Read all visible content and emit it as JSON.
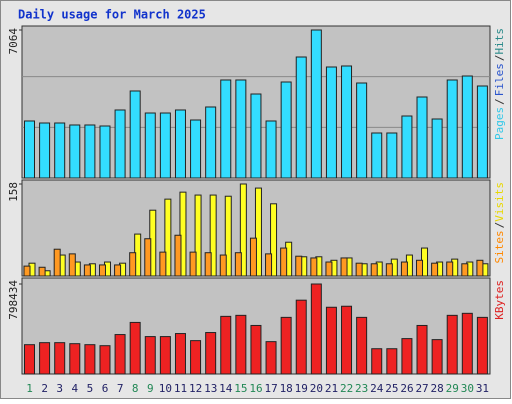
{
  "title": "Daily usage for March 2025",
  "chart_data": [
    {
      "type": "bar",
      "ylim": [
        0,
        7064
      ],
      "yticks": [
        7064
      ],
      "right_label": [
        {
          "text": "Pages",
          "color": "#33c8e8"
        },
        {
          "text": "/",
          "color": "#333333"
        },
        {
          "text": "Files",
          "color": "#2a55cc"
        },
        {
          "text": "/",
          "color": "#333333"
        },
        {
          "text": "Hits",
          "color": "#2a8a8a"
        }
      ],
      "series": [
        {
          "color": "#33ddff",
          "values": [
            2721,
            2625,
            2625,
            2530,
            2530,
            2482,
            3246,
            4153,
            3102,
            3102,
            3246,
            2768,
            3389,
            4678,
            4678,
            4009,
            2721,
            4582,
            5775,
            7064,
            5298,
            5346,
            4534,
            2148,
            2148,
            2959,
            3866,
            2816,
            4678,
            4868,
            4391
          ]
        }
      ]
    },
    {
      "type": "bar",
      "ylim": [
        0,
        158
      ],
      "yticks": [
        158
      ],
      "right_label": [
        {
          "text": "Sites",
          "color": "#ff8800"
        },
        {
          "text": "/",
          "color": "#333333"
        },
        {
          "text": "Visits",
          "color": "#e8d800"
        }
      ],
      "series": [
        {
          "color": "#ff9922",
          "values": [
            17,
            15,
            46,
            38,
            19,
            19,
            19,
            40,
            64,
            41,
            70,
            41,
            40,
            36,
            40,
            65,
            38,
            48,
            34,
            31,
            24,
            31,
            22,
            21,
            21,
            24,
            27,
            22,
            24,
            21,
            27
          ]
        },
        {
          "color": "#ffff22",
          "values": [
            22,
            9,
            36,
            24,
            21,
            24,
            22,
            72,
            113,
            132,
            144,
            139,
            139,
            137,
            158,
            151,
            124,
            58,
            33,
            33,
            27,
            31,
            21,
            24,
            29,
            36,
            48,
            24,
            29,
            24,
            21
          ]
        }
      ]
    },
    {
      "type": "bar",
      "ylim": [
        0,
        798434
      ],
      "yticks": [
        798434
      ],
      "right_label": [
        {
          "text": "KBytes",
          "color": "#dd2222"
        }
      ],
      "categories": [
        "1",
        "2",
        "3",
        "4",
        "5",
        "6",
        "7",
        "8",
        "9",
        "10",
        "11",
        "12",
        "13",
        "14",
        "15",
        "16",
        "17",
        "18",
        "19",
        "20",
        "21",
        "22",
        "23",
        "24",
        "25",
        "26",
        "27",
        "28",
        "29",
        "30",
        "31"
      ],
      "category_colors": [
        "#228855",
        "#222266",
        "#222266",
        "#222266",
        "#222266",
        "#222266",
        "#222266",
        "#228855",
        "#228855",
        "#222266",
        "#222266",
        "#222266",
        "#222266",
        "#222266",
        "#228855",
        "#228855",
        "#222266",
        "#222266",
        "#222266",
        "#222266",
        "#222266",
        "#228855",
        "#228855",
        "#222266",
        "#222266",
        "#222266",
        "#222266",
        "#222266",
        "#228855",
        "#228855",
        "#222266"
      ],
      "series": [
        {
          "color": "#ee2222",
          "values": [
            260165,
            278107,
            278107,
            269136,
            260165,
            251194,
            349877,
            457531,
            331934,
            331934,
            358848,
            296050,
            367820,
            511358,
            520330,
            430618,
            287078,
            502387,
            654900,
            798434,
            592099,
            601070,
            502387,
            224280,
            224280,
            313992,
            430618,
            305021,
            520330,
            538272,
            502387
          ]
        }
      ]
    }
  ]
}
